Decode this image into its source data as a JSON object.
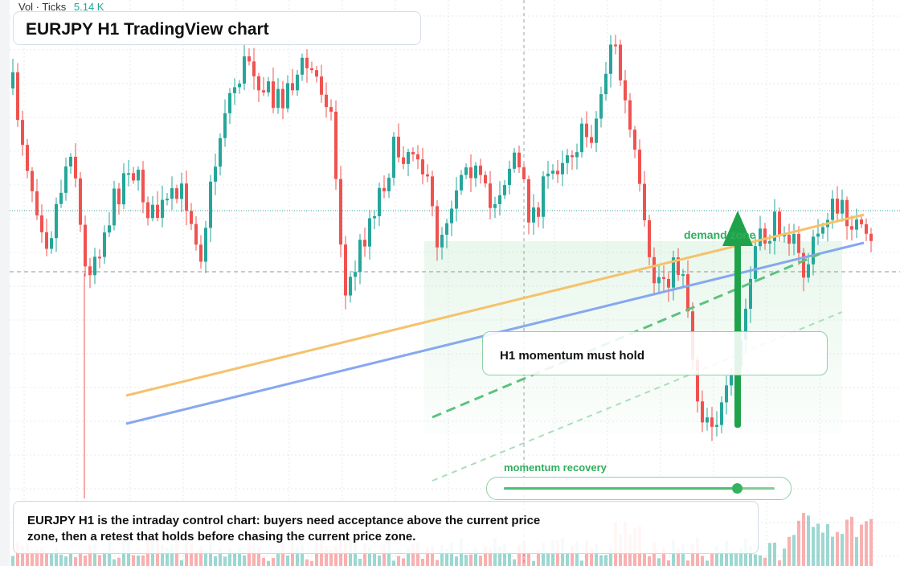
{
  "header": {
    "vol_label": "Vol · Ticks",
    "vol_value": "5.14 K"
  },
  "title": "EURJPY H1 TradingView chart",
  "annotations": {
    "demand_zone": "demand zone",
    "momentum_hold": "H1 momentum must hold",
    "momentum_recovery": "momentum recovery",
    "momentum_level": 0.86
  },
  "caption": "EURJPY H1 is the intraday control chart: buyers need acceptance above the current price zone, then a retest that holds before chasing the current price zone.",
  "colors": {
    "bull": "#26a69a",
    "bear": "#ef5350",
    "orange_trendline": "#f5c26b",
    "blue_trendline": "#86a8ef",
    "green_accent": "#2fae5c",
    "grid": "#e3e8ef"
  },
  "icons": {
    "arrow": "up-arrow-icon"
  }
}
